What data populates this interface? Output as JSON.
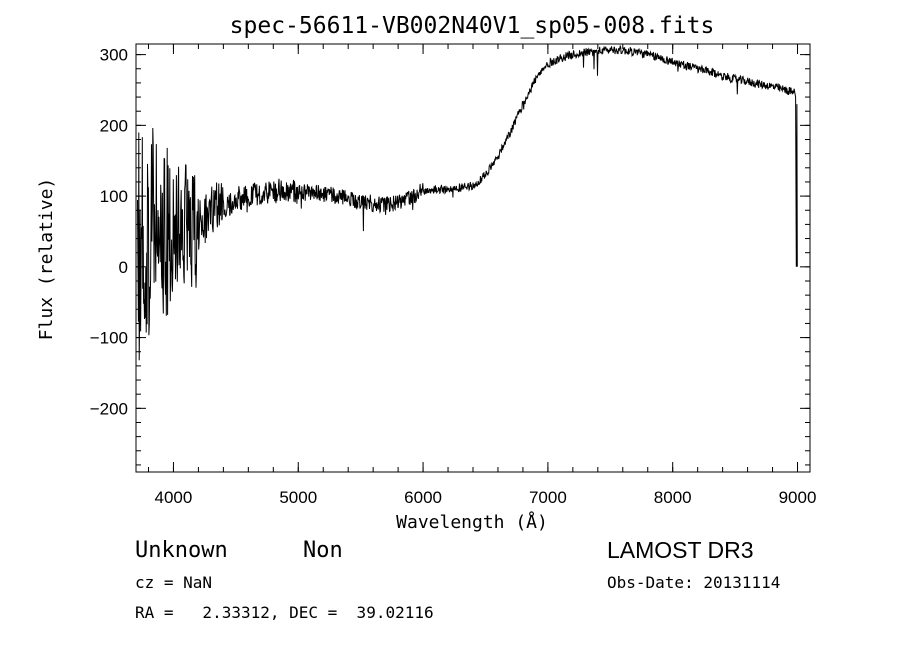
{
  "chart_data": {
    "type": "line",
    "title": "spec-56611-VB002N40V1_sp05-008.fits",
    "xlabel": "Wavelength (Å)",
    "ylabel": "Flux (relative)",
    "xlim": [
      3700,
      9100
    ],
    "ylim": [
      -290,
      315
    ],
    "xticks": [
      4000,
      5000,
      6000,
      7000,
      8000,
      9000
    ],
    "yticks": [
      300,
      200,
      100,
      0,
      -100,
      -200
    ],
    "xtick_labels": [
      "4000",
      "5000",
      "6000",
      "7000",
      "8000",
      "9000"
    ],
    "ytick_labels": [
      "300",
      "200",
      "100",
      "0",
      "−100",
      "−200"
    ],
    "series": [
      {
        "x": [
          3700,
          3750,
          3800,
          3850,
          3900,
          3950,
          4000,
          4050,
          4100,
          4150,
          4200,
          4250,
          4300,
          4400,
          4500,
          4600,
          4700,
          4800,
          4900,
          5000,
          5100,
          5200,
          5300,
          5400,
          5500,
          5600,
          5700,
          5800,
          5900,
          6000,
          6100,
          6200,
          6300,
          6400,
          6500,
          6600,
          6700,
          6800,
          6900,
          7000,
          7100,
          7200,
          7300,
          7400,
          7500,
          7600,
          7700,
          7800,
          7900,
          8000,
          8100,
          8200,
          8300,
          8400,
          8500,
          8600,
          8700,
          8800,
          8900,
          9000
        ],
        "y": [
          20,
          30,
          40,
          45,
          55,
          50,
          45,
          55,
          55,
          60,
          60,
          70,
          75,
          85,
          95,
          100,
          105,
          108,
          105,
          105,
          105,
          103,
          100,
          97,
          93,
          90,
          88,
          90,
          100,
          107,
          110,
          110,
          112,
          115,
          130,
          155,
          190,
          230,
          265,
          287,
          295,
          300,
          303,
          305,
          307,
          306,
          304,
          300,
          295,
          290,
          285,
          280,
          275,
          270,
          265,
          262,
          258,
          255,
          250,
          245
        ]
      }
    ]
  },
  "info": {
    "object_class": "Unknown",
    "object_subclass": "Non",
    "survey": "LAMOST DR3",
    "cz": "cz = NaN",
    "obs_date": "Obs-Date: 20131114",
    "coords": "RA =   2.33312, DEC =  39.02116"
  }
}
